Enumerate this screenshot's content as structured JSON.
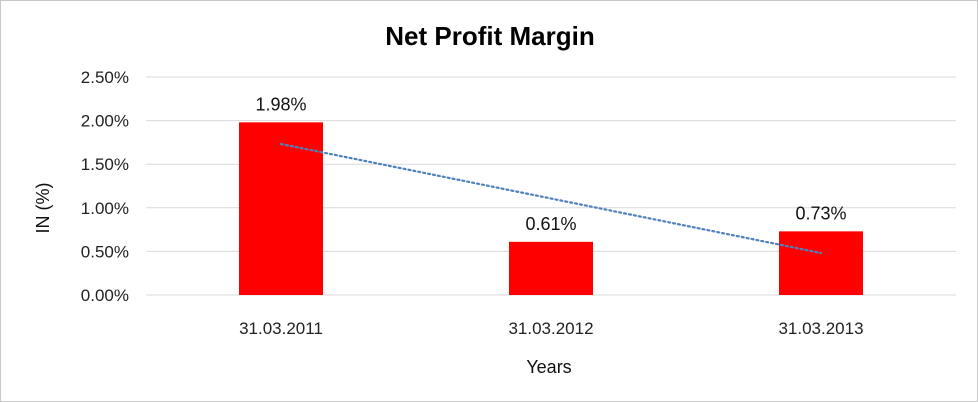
{
  "chart_data": {
    "type": "bar",
    "title": "Net Profit Margin",
    "xlabel": "Years",
    "ylabel": "IN (%)",
    "categories": [
      "31.03.2011",
      "31.03.2012",
      "31.03.2013"
    ],
    "series": [
      {
        "values": [
          1.98,
          0.61,
          0.73
        ],
        "data_labels": [
          "1.98%",
          "0.61%",
          "0.73%"
        ],
        "color": "#ff0000"
      }
    ],
    "trendline": {
      "type": "linear",
      "style": "dotted",
      "color": "#4f81bd"
    },
    "ylim": [
      0,
      2.5
    ],
    "yticks": [
      0,
      0.5,
      1.0,
      1.5,
      2.0,
      2.5
    ],
    "ytick_labels": [
      "0.00%",
      "0.50%",
      "1.00%",
      "1.50%",
      "2.00%",
      "2.50%"
    ],
    "grid": true,
    "gridline_color": "#d9d9d9",
    "legend": "none"
  }
}
